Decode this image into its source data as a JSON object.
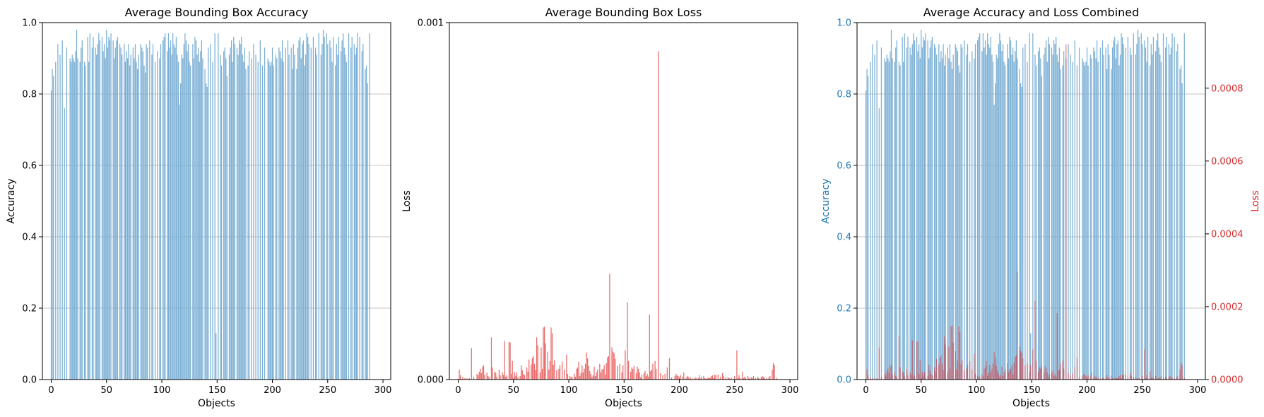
{
  "colors": {
    "accuracy_bar": "#7bafd4",
    "loss_bar": "#ea6a6a",
    "accuracy_axis": "#1f77b4",
    "loss_axis": "#d62728",
    "grid": "#b0b0b0",
    "axis": "#000000"
  },
  "chart_data": [
    {
      "type": "bar",
      "title": "Average Bounding Box Accuracy",
      "xlabel": "Objects",
      "ylabel": "Accuracy",
      "xlim": [
        -8,
        307
      ],
      "ylim": [
        0,
        1.0
      ],
      "xticks": [
        "0",
        "50",
        "100",
        "150",
        "200",
        "250",
        "300"
      ],
      "yticks": [
        "0.0",
        "0.2",
        "0.4",
        "0.6",
        "0.8",
        "1.0"
      ],
      "grid": "horizontal",
      "series": [
        {
          "values_ref": "accuracy"
        }
      ]
    },
    {
      "type": "bar",
      "title": "Average Bounding Box Loss",
      "xlabel": "Objects",
      "ylabel": "Loss",
      "xlim": [
        -8,
        307
      ],
      "ylim": [
        0,
        0.001
      ],
      "xticks": [
        "0",
        "50",
        "100",
        "150",
        "200",
        "250",
        "300"
      ],
      "yticks": [
        "0.000",
        "0.001"
      ],
      "grid": "none",
      "series": [
        {
          "values_ref": "loss"
        }
      ]
    },
    {
      "type": "bar",
      "title": "Average Accuracy and Loss Combined",
      "xlabel": "Objects",
      "ylabel": "Accuracy",
      "ylabel_right": "Loss",
      "xlim": [
        -8,
        307
      ],
      "ylim": [
        0,
        1.0
      ],
      "ylim_right": [
        0,
        0.00098
      ],
      "xticks": [
        "0",
        "50",
        "100",
        "150",
        "200",
        "250",
        "300"
      ],
      "yticks": [
        "0.0",
        "0.2",
        "0.4",
        "0.6",
        "0.8",
        "1.0"
      ],
      "yticks_right": [
        "0.0000",
        "0.0002",
        "0.0004",
        "0.0006",
        "0.0008"
      ],
      "grid": "horizontal"
    }
  ],
  "series_values": {
    "x_start": 0,
    "accuracy": [
      0.81,
      0.87,
      0.85,
      0.0,
      0.89,
      0.0,
      0.94,
      0.0,
      0.91,
      0.0,
      0.95,
      0.0,
      0.76,
      0.0,
      0.93,
      0.0,
      0.0,
      0.9,
      0.89,
      0.91,
      0.9,
      0.89,
      0.92,
      0.98,
      0.9,
      0.0,
      0.89,
      0.93,
      0.95,
      0.0,
      0.89,
      0.88,
      0.0,
      0.96,
      0.89,
      0.97,
      0.0,
      0.93,
      0.96,
      0.0,
      0.93,
      0.91,
      0.94,
      0.97,
      0.95,
      0.0,
      0.96,
      0.92,
      0.94,
      0.9,
      0.98,
      0.93,
      0.96,
      0.95,
      0.97,
      0.0,
      0.95,
      0.9,
      0.93,
      0.95,
      0.96,
      0.0,
      0.94,
      0.93,
      0.91,
      0.0,
      0.94,
      0.89,
      0.92,
      0.9,
      0.94,
      0.88,
      0.91,
      0.0,
      0.93,
      0.9,
      0.94,
      0.89,
      0.87,
      0.91,
      0.0,
      0.94,
      0.93,
      0.92,
      0.88,
      0.86,
      0.94,
      0.93,
      0.0,
      0.95,
      0.0,
      0.91,
      0.94,
      0.0,
      0.89,
      0.0,
      0.92,
      0.0,
      0.9,
      0.94,
      0.0,
      0.95,
      0.96,
      0.97,
      0.0,
      0.92,
      0.97,
      0.93,
      0.95,
      0.91,
      0.97,
      0.94,
      0.93,
      0.96,
      0.91,
      0.89,
      0.77,
      0.83,
      0.91,
      0.9,
      0.94,
      0.97,
      0.95,
      0.92,
      0.94,
      0.89,
      0.88,
      0.0,
      0.94,
      0.9,
      0.96,
      0.95,
      0.91,
      0.93,
      0.89,
      0.92,
      0.95,
      0.9,
      0.0,
      0.87,
      0.83,
      0.82,
      0.93,
      0.0,
      0.94,
      0.0,
      0.89,
      0.0,
      0.97,
      0.13,
      0.0,
      0.97,
      0.0,
      0.91,
      0.88,
      0.0,
      0.92,
      0.93,
      0.9,
      0.85,
      0.0,
      0.91,
      0.93,
      0.95,
      0.89,
      0.96,
      0.94,
      0.0,
      0.93,
      0.91,
      0.95,
      0.94,
      0.96,
      0.91,
      0.89,
      0.93,
      0.87,
      0.0,
      0.88,
      0.92,
      0.0,
      0.9,
      0.0,
      0.94,
      0.0,
      0.91,
      0.0,
      0.89,
      0.0,
      0.95,
      0.0,
      0.88,
      0.0,
      0.93,
      0.0,
      0.0,
      0.9,
      0.89,
      0.88,
      0.89,
      0.93,
      0.88,
      0.0,
      0.91,
      0.9,
      0.0,
      0.93,
      0.92,
      0.9,
      0.95,
      0.89,
      0.0,
      0.93,
      0.0,
      0.95,
      0.91,
      0.0,
      0.93,
      0.87,
      0.94,
      0.91,
      0.0,
      0.87,
      0.93,
      0.95,
      0.96,
      0.9,
      0.94,
      0.95,
      0.88,
      0.91,
      0.97,
      0.96,
      0.94,
      0.0,
      0.93,
      0.0,
      0.96,
      0.0,
      0.93,
      0.91,
      0.0,
      0.97,
      0.0,
      0.91,
      0.94,
      0.98,
      0.96,
      0.0,
      0.97,
      0.94,
      0.0,
      0.95,
      0.93,
      0.89,
      0.96,
      0.0,
      0.88,
      0.94,
      0.91,
      0.96,
      0.0,
      0.92,
      0.95,
      0.97,
      0.93,
      0.91,
      0.89,
      0.0,
      0.97,
      0.0,
      0.93,
      0.96,
      0.0,
      0.94,
      0.91,
      0.93,
      0.97,
      0.0,
      0.96,
      0.0,
      0.92,
      0.94,
      0.0,
      0.87,
      0.88,
      0.83,
      0.0,
      0.97
    ],
    "loss": [
      2e-06,
      2.8e-05,
      1.2e-05,
      0.0,
      6e-06,
      0.0,
      4e-06,
      0.0,
      3e-06,
      0.0,
      4e-06,
      0.0,
      8.8e-05,
      0.0,
      8e-06,
      0.0,
      0.0,
      1.6e-05,
      1.2e-05,
      2.2e-05,
      3e-05,
      1.8e-05,
      3.6e-05,
      4e-05,
      1.4e-05,
      0.0,
      2e-05,
      1e-05,
      7e-06,
      0.0,
      0.000118,
      3.4e-05,
      0.0,
      2.2e-05,
      1.9e-05,
      8e-06,
      0.0,
      2.8e-05,
      1.2e-05,
      0.0,
      2e-05,
      1.3e-05,
      0.000108,
      8e-06,
      1.2e-05,
      0.0,
      0.000105,
      0.000104,
      1.6e-05,
      5.2e-05,
      5e-06,
      2.1e-05,
      1.1e-05,
      2e-05,
      6e-06,
      0.0,
      1e-05,
      4e-05,
      2.6e-05,
      1.6e-05,
      1.2e-05,
      0.0,
      3.4e-05,
      2.2e-05,
      5.6e-05,
      0.0,
      4.2e-05,
      6e-05,
      6.6e-05,
      4.4e-05,
      2.6e-05,
      0.000118,
      9.6e-05,
      0.0,
      2e-05,
      9e-05,
      3e-05,
      0.000146,
      0.000148,
      0.000102,
      0.0,
      7.8e-05,
      2.8e-05,
      5.2e-05,
      0.000146,
      0.00013,
      4.2e-05,
      5.4e-05,
      0.0,
      2.6e-05,
      0.0,
      3e-05,
      4e-05,
      0.0,
      5e-05,
      0.0,
      2.8e-05,
      0.0,
      7e-05,
      1.6e-05,
      0.0,
      1e-05,
      6e-06,
      8e-06,
      0.0,
      1.6e-05,
      8e-06,
      3e-05,
      3.4e-05,
      5e-05,
      1e-05,
      1.8e-05,
      4e-05,
      2e-05,
      3e-05,
      4.4e-05,
      7.6e-05,
      6e-05,
      3.8e-05,
      2.4e-05,
      1.6e-05,
      8e-06,
      1.2e-05,
      3.6e-05,
      1e-05,
      2e-05,
      2.8e-05,
      0.0,
      4.4e-05,
      2e-05,
      2.8e-05,
      3e-05,
      4e-05,
      1.4e-05,
      4.6e-05,
      6.2e-05,
      6.6e-05,
      0.000296,
      0.0,
      9e-05,
      7.8e-05,
      7.4e-05,
      5.8e-05,
      0.0,
      3.8e-05,
      0.0,
      4.4e-05,
      0.0,
      2e-05,
      4e-05,
      0.0,
      8.2e-05,
      0.0,
      0.000216,
      5.2e-05,
      0.0,
      2.2e-05,
      3.4e-05,
      3e-05,
      3.8e-05,
      0.0,
      1.8e-05,
      3.6e-05,
      3e-05,
      2e-05,
      6e-06,
      1.4e-05,
      0.0,
      1.8e-05,
      2.4e-05,
      1e-05,
      1.6e-05,
      8e-06,
      0.000182,
      2.4e-05,
      2.8e-05,
      4.4e-05,
      0.0,
      5.2e-05,
      3e-05,
      0.0,
      0.00092,
      0.0,
      1.8e-05,
      0.0,
      1.2e-05,
      0.0,
      1.6e-05,
      0.0,
      3.4e-05,
      0.0,
      6e-05,
      0.0,
      6e-06,
      0.0,
      0.0,
      1e-05,
      1.6e-05,
      1.2e-05,
      1e-05,
      6e-06,
      1.2e-05,
      0.0,
      8e-06,
      2e-05,
      0.0,
      4e-06,
      1e-05,
      8e-06,
      3e-06,
      6e-06,
      0.0,
      3e-06,
      0.0,
      4e-06,
      6e-06,
      0.0,
      4e-06,
      1.2e-05,
      3e-06,
      8e-06,
      0.0,
      1e-05,
      4e-06,
      2e-06,
      3e-06,
      6e-06,
      4e-06,
      5e-06,
      1e-05,
      1.2e-05,
      4e-06,
      1.4e-05,
      1.2e-05,
      0.0,
      1.4e-05,
      0.0,
      8e-06,
      0.0,
      1.8e-05,
      1e-05,
      0.0,
      6e-06,
      0.0,
      6e-06,
      4e-06,
      2e-06,
      4e-06,
      0.0,
      2e-06,
      1e-05,
      0.0,
      8.2e-05,
      4e-06,
      1.2e-05,
      4e-06,
      0.0,
      2.2e-05,
      4e-06,
      8e-06,
      4e-06,
      0.0,
      1e-05,
      4e-06,
      2e-06,
      6e-06,
      4e-06,
      1e-05,
      0.0,
      4e-06,
      0.0,
      8e-06,
      4e-06,
      0.0,
      6e-06,
      1e-05,
      8e-06,
      4e-06,
      0.0,
      4e-06,
      0.0,
      6e-06,
      1e-05,
      0.0,
      2.8e-05,
      4.6e-05,
      4e-05,
      0.0,
      4e-06
    ]
  }
}
